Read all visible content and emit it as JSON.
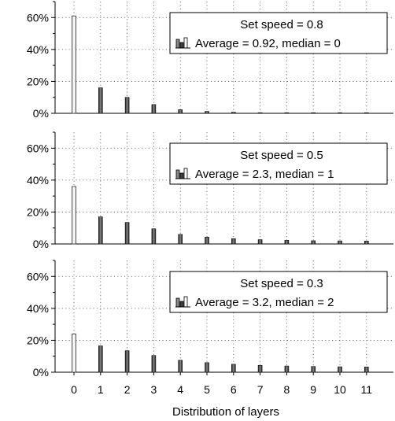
{
  "chart_data": {
    "type": "bar",
    "xlabel": "Distribution of layers",
    "categories": [
      "0",
      "1",
      "2",
      "3",
      "4",
      "5",
      "6",
      "7",
      "8",
      "9",
      "10",
      "11"
    ],
    "y_tick_labels": [
      "0%",
      "20%",
      "40%",
      "60%"
    ],
    "ylim": [
      0,
      70
    ],
    "grid": true,
    "legend_placement": "top-right",
    "panels": [
      {
        "name": "panel-speed-0.8",
        "legend_title": "Set speed = 0.8",
        "legend_stats": "Average = 0.92, median = 0",
        "values": [
          61,
          16,
          10,
          5.5,
          2.3,
          1.2,
          0.7,
          0.4,
          0.3,
          0.2,
          0.2,
          0.1
        ]
      },
      {
        "name": "panel-speed-0.5",
        "legend_title": "Set speed = 0.5",
        "legend_stats": "Average = 2.3, median = 1",
        "values": [
          36,
          17,
          13.5,
          9.5,
          6,
          4.3,
          3.3,
          2.7,
          2.3,
          2,
          1.9,
          1.8
        ]
      },
      {
        "name": "panel-speed-0.3",
        "legend_title": "Set speed = 0.3",
        "legend_stats": "Average = 3.2, median = 2",
        "values": [
          24,
          16.5,
          13.5,
          10.5,
          7.5,
          6,
          5,
          4.3,
          3.9,
          3.6,
          3.4,
          3.3
        ]
      }
    ],
    "colors": {
      "bar_dark": "#555555",
      "bar_light": "#ffffff",
      "grid": "#555555"
    }
  }
}
